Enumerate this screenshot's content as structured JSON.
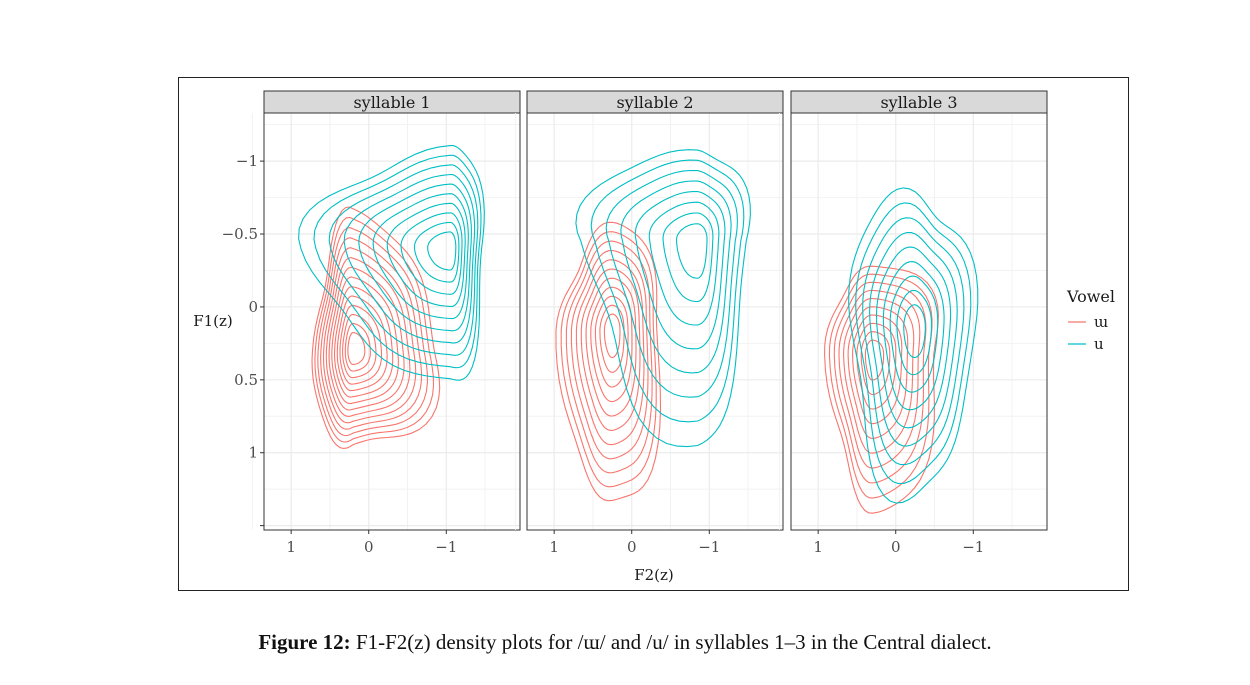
{
  "chart_data": {
    "type": "density-contour",
    "xlabel": "F2(z)",
    "ylabel": "F1(z)",
    "x_reversed": true,
    "y_reversed": true,
    "xlim": [
      1.35,
      -1.95
    ],
    "ylim": [
      -1.33,
      1.53
    ],
    "x_ticks": [
      {
        "v": 1,
        "label": "1"
      },
      {
        "v": 0,
        "label": "0"
      },
      {
        "v": -1,
        "label": "−1"
      }
    ],
    "y_ticks": [
      {
        "v": -1,
        "label": "−1"
      },
      {
        "v": -0.5,
        "label": "−0.5"
      },
      {
        "v": 0,
        "label": "0"
      },
      {
        "v": 0.5,
        "label": "0.5"
      },
      {
        "v": 1,
        "label": "1"
      },
      {
        "v": 1.5,
        "label": ""
      }
    ],
    "grid": true,
    "legend": {
      "title": "Vowel",
      "position": "right",
      "entries": [
        {
          "label": "ɯ",
          "color": "#F8766D"
        },
        {
          "label": "u",
          "color": "#00BFC4"
        }
      ]
    },
    "panels": [
      {
        "title": "syllable 1",
        "groups": [
          {
            "vowel": "ɯ",
            "color": "#F8766D",
            "peak": [
              0.2,
              0.3
            ],
            "outer_extent_x": [
              0.7,
              -0.9
            ],
            "outer_extent_y": [
              -0.6,
              1.0
            ],
            "levels": 14
          },
          {
            "vowel": "u",
            "color": "#00BFC4",
            "peak": [
              -1.05,
              -0.4
            ],
            "outer_extent_x": [
              0.7,
              -1.5
            ],
            "outer_extent_y": [
              -1.1,
              0.5
            ],
            "levels": 10
          }
        ]
      },
      {
        "title": "syllable 2",
        "groups": [
          {
            "vowel": "ɯ",
            "color": "#F8766D",
            "peak": [
              0.25,
              0.16
            ],
            "outer_extent_x": [
              0.9,
              -0.4
            ],
            "outer_extent_y": [
              -0.55,
              1.38
            ],
            "levels": 11
          },
          {
            "vowel": "u",
            "color": "#00BFC4",
            "peak": [
              -0.85,
              -0.45
            ],
            "outer_extent_x": [
              0.6,
              -1.5
            ],
            "outer_extent_y": [
              -1.1,
              0.9
            ],
            "levels": 8
          }
        ]
      },
      {
        "title": "syllable 3",
        "groups": [
          {
            "vowel": "ɯ",
            "color": "#F8766D",
            "peak": [
              0.3,
              0.33
            ],
            "outer_extent_x": [
              0.85,
              -0.6
            ],
            "outer_extent_y": [
              -0.3,
              1.38
            ],
            "levels": 10
          },
          {
            "vowel": "u",
            "color": "#00BFC4",
            "peak": [
              -0.25,
              0.15
            ],
            "outer_extent_x": [
              0.6,
              -1.0
            ],
            "outer_extent_y": [
              -0.8,
              1.28
            ],
            "levels": 9
          }
        ]
      }
    ]
  },
  "caption": {
    "label": "Figure 12:",
    "text": " F1-F2(z) density plots for /ɯ/ and /u/ in syllables 1–3 in the Central dialect."
  }
}
